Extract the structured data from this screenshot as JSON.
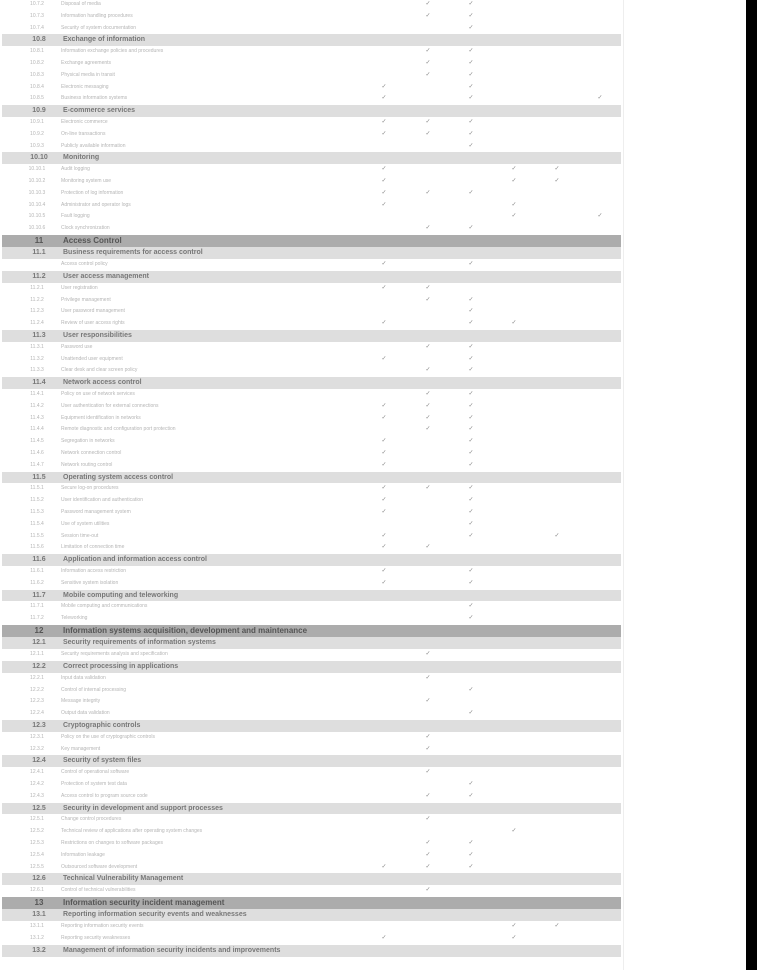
{
  "mark_glyph": "✓",
  "columns": 6,
  "rows": [
    {
      "t": "item",
      "n": "10.7.2",
      "l": "Disposal of media",
      "m": [
        1,
        2
      ]
    },
    {
      "t": "item",
      "n": "10.7.3",
      "l": "Information handling procedures",
      "m": [
        1,
        2
      ]
    },
    {
      "t": "item",
      "n": "10.7.4",
      "l": "Security of system documentation",
      "m": [
        2
      ]
    },
    {
      "t": "sub",
      "n": "10.8",
      "l": "Exchange of information",
      "m": []
    },
    {
      "t": "item",
      "n": "10.8.1",
      "l": "Information exchange policies and procedures",
      "m": [
        1,
        2
      ]
    },
    {
      "t": "item",
      "n": "10.8.2",
      "l": "Exchange agreements",
      "m": [
        1,
        2
      ]
    },
    {
      "t": "item",
      "n": "10.8.3",
      "l": "Physical media in transit",
      "m": [
        1,
        2
      ]
    },
    {
      "t": "item",
      "n": "10.8.4",
      "l": "Electronic messaging",
      "m": [
        0,
        2
      ]
    },
    {
      "t": "item",
      "n": "10.8.5",
      "l": "Business information systems",
      "m": [
        0,
        2,
        5
      ]
    },
    {
      "t": "sub",
      "n": "10.9",
      "l": "E-commerce services",
      "m": []
    },
    {
      "t": "item",
      "n": "10.9.1",
      "l": "Electronic commerce",
      "m": [
        0,
        1,
        2
      ]
    },
    {
      "t": "item",
      "n": "10.9.2",
      "l": "On-line transactions",
      "m": [
        0,
        1,
        2
      ]
    },
    {
      "t": "item",
      "n": "10.9.3",
      "l": "Publicly available information",
      "m": [
        2
      ]
    },
    {
      "t": "sub",
      "n": "10.10",
      "l": "Monitoring",
      "m": []
    },
    {
      "t": "item",
      "n": "10.10.1",
      "l": "Audit logging",
      "m": [
        0,
        3,
        4
      ]
    },
    {
      "t": "item",
      "n": "10.10.2",
      "l": "Monitoring system use",
      "m": [
        0,
        3,
        4
      ]
    },
    {
      "t": "item",
      "n": "10.10.3",
      "l": "Protection of log information",
      "m": [
        0,
        1,
        2
      ]
    },
    {
      "t": "item",
      "n": "10.10.4",
      "l": "Administrator and operator logs",
      "m": [
        0,
        3
      ]
    },
    {
      "t": "item",
      "n": "10.10.5",
      "l": "Fault logging",
      "m": [
        3,
        5
      ]
    },
    {
      "t": "item",
      "n": "10.10.6",
      "l": "Clock synchronization",
      "m": [
        1,
        2
      ]
    },
    {
      "t": "dark",
      "n": "11",
      "l": "Access Control",
      "m": []
    },
    {
      "t": "sub",
      "n": "11.1",
      "l": "Business requirements for access control",
      "m": []
    },
    {
      "t": "item",
      "n": "",
      "l": "Access control policy",
      "m": [
        0,
        2
      ]
    },
    {
      "t": "sub",
      "n": "11.2",
      "l": "User access management",
      "m": []
    },
    {
      "t": "item",
      "n": "11.2.1",
      "l": "User registration",
      "m": [
        0,
        1
      ]
    },
    {
      "t": "item",
      "n": "11.2.2",
      "l": "Privilege management",
      "m": [
        1,
        2
      ]
    },
    {
      "t": "item",
      "n": "11.2.3",
      "l": "User password management",
      "m": [
        2
      ]
    },
    {
      "t": "item",
      "n": "11.2.4",
      "l": "Review of user access rights",
      "m": [
        0,
        2,
        3
      ]
    },
    {
      "t": "sub",
      "n": "11.3",
      "l": "User responsibilities",
      "m": []
    },
    {
      "t": "item",
      "n": "11.3.1",
      "l": "Password use",
      "m": [
        1,
        2
      ]
    },
    {
      "t": "item",
      "n": "11.3.2",
      "l": "Unattended user equipment",
      "m": [
        0,
        2
      ]
    },
    {
      "t": "item",
      "n": "11.3.3",
      "l": "Clear desk and clear screen policy",
      "m": [
        1,
        2
      ]
    },
    {
      "t": "sub",
      "n": "11.4",
      "l": "Network access control",
      "m": []
    },
    {
      "t": "item",
      "n": "11.4.1",
      "l": "Policy on use of network services",
      "m": [
        1,
        2
      ]
    },
    {
      "t": "item",
      "n": "11.4.2",
      "l": "User authentication for external connections",
      "m": [
        0,
        1,
        2
      ]
    },
    {
      "t": "item",
      "n": "11.4.3",
      "l": "Equipment identification in networks",
      "m": [
        0,
        1,
        2
      ]
    },
    {
      "t": "item",
      "n": "11.4.4",
      "l": "Remote diagnostic and configuration port protection",
      "m": [
        1,
        2
      ]
    },
    {
      "t": "item",
      "n": "11.4.5",
      "l": "Segregation in networks",
      "m": [
        0,
        2
      ]
    },
    {
      "t": "item",
      "n": "11.4.6",
      "l": "Network connection control",
      "m": [
        0,
        2
      ]
    },
    {
      "t": "item",
      "n": "11.4.7",
      "l": "Network routing control",
      "m": [
        0,
        2
      ]
    },
    {
      "t": "sub",
      "n": "11.5",
      "l": "Operating system access control",
      "m": []
    },
    {
      "t": "item",
      "n": "11.5.1",
      "l": "Secure log-on procedures",
      "m": [
        0,
        1,
        2
      ]
    },
    {
      "t": "item",
      "n": "11.5.2",
      "l": "User identification and authentication",
      "m": [
        0,
        2
      ]
    },
    {
      "t": "item",
      "n": "11.5.3",
      "l": "Password management system",
      "m": [
        0,
        2
      ]
    },
    {
      "t": "item",
      "n": "11.5.4",
      "l": "Use of system utilities",
      "m": [
        2
      ]
    },
    {
      "t": "item",
      "n": "11.5.5",
      "l": "Session time-out",
      "m": [
        0,
        2,
        4
      ]
    },
    {
      "t": "item",
      "n": "11.5.6",
      "l": "Limitation of connection time",
      "m": [
        0,
        1
      ]
    },
    {
      "t": "sub",
      "n": "11.6",
      "l": "Application and information access control",
      "m": []
    },
    {
      "t": "item",
      "n": "11.6.1",
      "l": "Information access restriction",
      "m": [
        0,
        2
      ]
    },
    {
      "t": "item",
      "n": "11.6.2",
      "l": "Sensitive system isolation",
      "m": [
        0,
        2
      ]
    },
    {
      "t": "sub",
      "n": "11.7",
      "l": "Mobile computing and teleworking",
      "m": []
    },
    {
      "t": "item",
      "n": "11.7.1",
      "l": "Mobile computing and communications",
      "m": [
        2
      ]
    },
    {
      "t": "item",
      "n": "11.7.2",
      "l": "Teleworking",
      "m": [
        2
      ]
    },
    {
      "t": "dark",
      "n": "12",
      "l": "Information systems acquisition, development and maintenance",
      "m": []
    },
    {
      "t": "sub",
      "n": "12.1",
      "l": "Security requirements of information systems",
      "m": []
    },
    {
      "t": "item",
      "n": "12.1.1",
      "l": "Security requirements analysis and specification",
      "m": [
        1
      ]
    },
    {
      "t": "sub",
      "n": "12.2",
      "l": "Correct processing in applications",
      "m": []
    },
    {
      "t": "item",
      "n": "12.2.1",
      "l": "Input data validation",
      "m": [
        1
      ]
    },
    {
      "t": "item",
      "n": "12.2.2",
      "l": "Control of internal processing",
      "m": [
        2
      ]
    },
    {
      "t": "item",
      "n": "12.2.3",
      "l": "Message integrity",
      "m": [
        1
      ]
    },
    {
      "t": "item",
      "n": "12.2.4",
      "l": "Output data validation",
      "m": [
        2
      ]
    },
    {
      "t": "sub",
      "n": "12.3",
      "l": "Cryptographic controls",
      "m": []
    },
    {
      "t": "item",
      "n": "12.3.1",
      "l": "Policy on the use of cryptographic controls",
      "m": [
        1
      ]
    },
    {
      "t": "item",
      "n": "12.3.2",
      "l": "Key management",
      "m": [
        1
      ]
    },
    {
      "t": "sub",
      "n": "12.4",
      "l": "Security of system files",
      "m": []
    },
    {
      "t": "item",
      "n": "12.4.1",
      "l": "Control of operational software",
      "m": [
        1
      ]
    },
    {
      "t": "item",
      "n": "12.4.2",
      "l": "Protection of system test data",
      "m": [
        2
      ]
    },
    {
      "t": "item",
      "n": "12.4.3",
      "l": "Access control to program source code",
      "m": [
        1,
        2
      ]
    },
    {
      "t": "sub",
      "n": "12.5",
      "l": "Security in development and support processes",
      "m": []
    },
    {
      "t": "item",
      "n": "12.5.1",
      "l": "Change control procedures",
      "m": [
        1
      ]
    },
    {
      "t": "item",
      "n": "12.5.2",
      "l": "Technical review of applications after operating system changes",
      "m": [
        3
      ]
    },
    {
      "t": "item",
      "n": "12.5.3",
      "l": "Restrictions on changes to software packages",
      "m": [
        1,
        2
      ]
    },
    {
      "t": "item",
      "n": "12.5.4",
      "l": "Information leakage",
      "m": [
        1,
        2
      ]
    },
    {
      "t": "item",
      "n": "12.5.5",
      "l": "Outsourced software development",
      "m": [
        0,
        1,
        2
      ]
    },
    {
      "t": "sub",
      "n": "12.6",
      "l": "Technical Vulnerability Management",
      "m": []
    },
    {
      "t": "item",
      "n": "12.6.1",
      "l": "Control of technical vulnerabilities",
      "m": [
        1
      ]
    },
    {
      "t": "dark",
      "n": "13",
      "l": "Information security incident management",
      "m": []
    },
    {
      "t": "sub",
      "n": "13.1",
      "l": "Reporting information security events and weaknesses",
      "m": []
    },
    {
      "t": "item",
      "n": "13.1.1",
      "l": "Reporting information security events",
      "m": [
        3,
        4
      ]
    },
    {
      "t": "item",
      "n": "13.1.2",
      "l": "Reporting security weaknesses",
      "m": [
        0,
        3
      ]
    },
    {
      "t": "sub",
      "n": "13.2",
      "l": "Management of information security incidents and improvements",
      "m": []
    }
  ]
}
